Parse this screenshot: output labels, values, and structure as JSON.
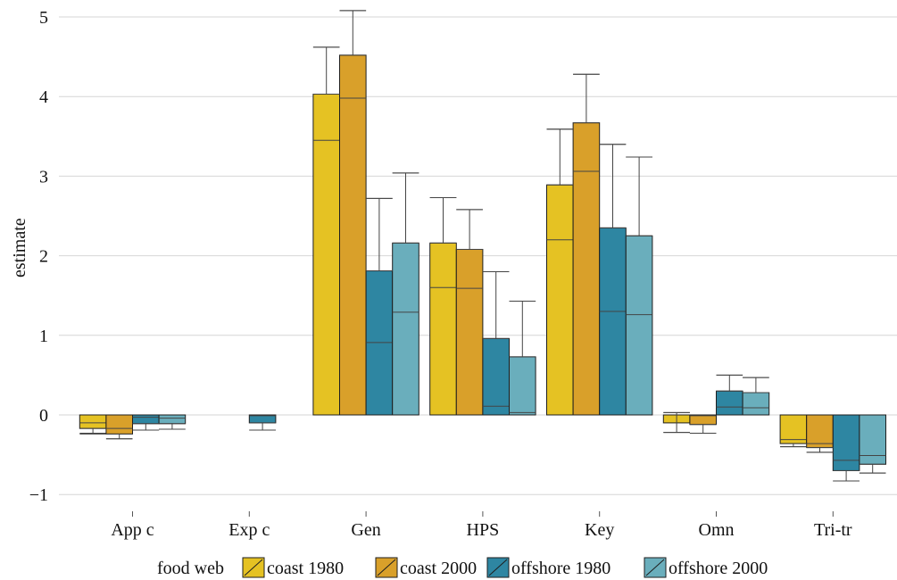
{
  "chart_data": {
    "type": "bar",
    "ylabel": "estimate",
    "xlabel": "",
    "ylim": [
      -1.1,
      5.2
    ],
    "yticks": [
      -1,
      0,
      1,
      2,
      3,
      4,
      5
    ],
    "ytick_labels": [
      "−1",
      "0",
      "1",
      "2",
      "3",
      "4",
      "5"
    ],
    "grid": true,
    "categories": [
      "App c",
      "Exp c",
      "Gen",
      "HPS",
      "Key",
      "Omn",
      "Tri-tr"
    ],
    "legend": {
      "title": "food web",
      "placement": "bottom"
    },
    "series": [
      {
        "name": "coast 1980",
        "color": "#E5C223",
        "values": [
          -0.17,
          null,
          4.03,
          2.16,
          2.89,
          -0.1,
          -0.36
        ],
        "ci_low": [
          -0.23,
          null,
          3.45,
          1.6,
          2.2,
          -0.22,
          -0.4
        ],
        "ci_high": [
          -0.1,
          null,
          4.62,
          2.73,
          3.59,
          0.03,
          -0.31
        ],
        "err_low": [
          -0.24,
          null,
          4.03,
          2.16,
          2.89,
          -0.22,
          -0.4
        ],
        "err_high": [
          -0.17,
          null,
          4.62,
          2.73,
          3.59,
          0.03,
          -0.36
        ]
      },
      {
        "name": "coast 2000",
        "color": "#D9A02A",
        "values": [
          -0.24,
          null,
          4.52,
          2.08,
          3.67,
          -0.12,
          -0.41
        ],
        "ci_low": [
          -0.3,
          null,
          3.98,
          1.59,
          3.06,
          -0.23,
          -0.47
        ],
        "ci_high": [
          -0.17,
          null,
          5.08,
          2.58,
          4.28,
          -0.01,
          -0.36
        ],
        "err_low": [
          -0.3,
          null,
          4.52,
          2.08,
          3.67,
          -0.23,
          -0.47
        ],
        "err_high": [
          -0.24,
          null,
          5.08,
          2.58,
          4.28,
          -0.12,
          -0.41
        ]
      },
      {
        "name": "offshore 1980",
        "color": "#2E86A2",
        "values": [
          -0.11,
          -0.1,
          1.81,
          0.96,
          2.35,
          0.3,
          -0.7
        ],
        "ci_low": [
          -0.19,
          -0.19,
          0.91,
          0.11,
          1.3,
          0.1,
          -0.83
        ],
        "ci_high": [
          -0.03,
          -0.01,
          2.72,
          1.8,
          3.4,
          0.5,
          -0.57
        ],
        "err_low": [
          -0.19,
          -0.19,
          1.81,
          0.96,
          2.35,
          0.3,
          -0.83
        ],
        "err_high": [
          -0.11,
          -0.1,
          2.72,
          1.8,
          3.4,
          0.5,
          -0.7
        ]
      },
      {
        "name": "offshore 2000",
        "color": "#6AAEBC",
        "values": [
          -0.11,
          null,
          2.16,
          0.73,
          2.25,
          0.28,
          -0.62
        ],
        "ci_low": [
          -0.18,
          null,
          1.29,
          0.03,
          1.26,
          0.09,
          -0.73
        ],
        "ci_high": [
          -0.04,
          null,
          3.04,
          1.43,
          3.24,
          0.47,
          -0.51
        ],
        "err_low": [
          -0.18,
          null,
          2.16,
          0.73,
          2.25,
          0.28,
          -0.73
        ],
        "err_high": [
          -0.11,
          null,
          3.04,
          1.43,
          3.24,
          0.47,
          -0.62
        ]
      }
    ]
  }
}
